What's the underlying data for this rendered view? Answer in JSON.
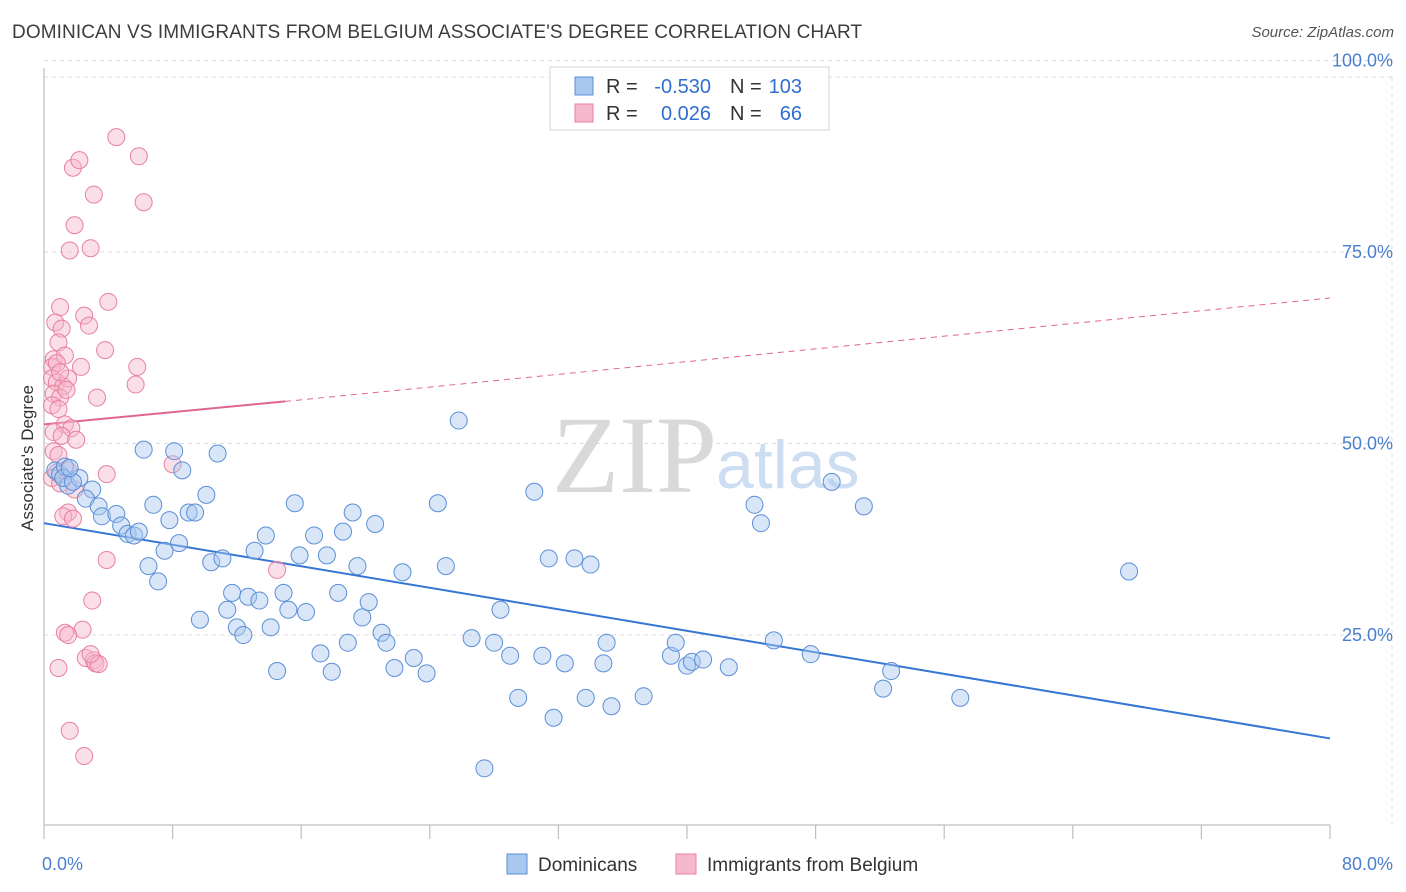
{
  "title": "DOMINICAN VS IMMIGRANTS FROM BELGIUM ASSOCIATE'S DEGREE CORRELATION CHART",
  "source": "Source: ZipAtlas.com",
  "watermark": {
    "zip": "ZIP",
    "atlas": "atlas"
  },
  "legend": {
    "rows": [
      {
        "r_label": "R =",
        "r_value": "-0.530",
        "n_label": "N =",
        "n_value": "103"
      },
      {
        "r_label": "R =",
        "r_value": "0.026",
        "n_label": "N =",
        "n_value": "66"
      }
    ]
  },
  "bottom_legend": [
    "Dominicans",
    "Immigrants from Belgium"
  ],
  "colors": {
    "blue_fill": "#a9c8f0",
    "blue_stroke": "#5b8fd6",
    "blue_line": "#3575d3",
    "pink_fill": "#f6b8cc",
    "pink_stroke": "#e8809f",
    "pink_line": "#e0668f",
    "grid": "#dcdcdc",
    "tick_label": "#4a7fd0"
  },
  "chart_data": {
    "type": "scatter",
    "title": "DOMINICAN VS IMMIGRANTS FROM BELGIUM ASSOCIATE'S DEGREE CORRELATION CHART",
    "xlabel": "",
    "ylabel": "Associate's Degree",
    "xlim": [
      0,
      80
    ],
    "ylim": [
      0,
      105
    ],
    "x_tick_labels": [
      {
        "value": 0,
        "label": "0.0%"
      },
      {
        "value": 80,
        "label": "80.0%"
      }
    ],
    "y_tick_labels": [
      {
        "value": 25,
        "label": "25.0%"
      },
      {
        "value": 50,
        "label": "50.0%"
      },
      {
        "value": 75,
        "label": "75.0%"
      },
      {
        "value": 100,
        "label": "100.0%"
      }
    ],
    "grid": true,
    "legend_position": "top-center",
    "series": [
      {
        "name": "Dominicans",
        "r": -0.53,
        "n": 103,
        "trend": {
          "x1": 0,
          "y1": 39.6,
          "x2": 80,
          "y2": 11.5,
          "style": "solid"
        },
        "points": [
          [
            0.7,
            46.5
          ],
          [
            1.0,
            46.0
          ],
          [
            1.3,
            47.0
          ],
          [
            1.5,
            44.5
          ],
          [
            1.2,
            45.5
          ],
          [
            2.2,
            45.5
          ],
          [
            1.8,
            45.0
          ],
          [
            3.0,
            44.0
          ],
          [
            2.6,
            42.8
          ],
          [
            3.4,
            41.8
          ],
          [
            3.6,
            40.5
          ],
          [
            4.5,
            40.8
          ],
          [
            4.8,
            39.3
          ],
          [
            5.2,
            38.2
          ],
          [
            5.6,
            38.0
          ],
          [
            5.9,
            38.5
          ],
          [
            6.2,
            49.2
          ],
          [
            6.5,
            34.0
          ],
          [
            6.8,
            42.0
          ],
          [
            7.1,
            32.0
          ],
          [
            7.5,
            36.0
          ],
          [
            7.8,
            40.0
          ],
          [
            8.1,
            49.0
          ],
          [
            8.4,
            37.0
          ],
          [
            8.6,
            46.5
          ],
          [
            9.0,
            41.0
          ],
          [
            9.4,
            41.0
          ],
          [
            9.7,
            27.0
          ],
          [
            10.1,
            43.3
          ],
          [
            10.4,
            34.5
          ],
          [
            10.8,
            48.7
          ],
          [
            11.1,
            35.0
          ],
          [
            11.4,
            28.3
          ],
          [
            11.7,
            30.5
          ],
          [
            12.0,
            26.0
          ],
          [
            12.4,
            25.0
          ],
          [
            12.7,
            30.0
          ],
          [
            13.1,
            36.0
          ],
          [
            13.4,
            29.5
          ],
          [
            13.8,
            38.0
          ],
          [
            14.1,
            26.0
          ],
          [
            14.5,
            20.3
          ],
          [
            14.9,
            30.5
          ],
          [
            15.2,
            28.3
          ],
          [
            15.6,
            42.2
          ],
          [
            15.9,
            35.4
          ],
          [
            16.3,
            28.0
          ],
          [
            16.8,
            38.0
          ],
          [
            17.2,
            22.6
          ],
          [
            17.6,
            35.4
          ],
          [
            17.9,
            20.2
          ],
          [
            18.3,
            30.5
          ],
          [
            18.6,
            38.5
          ],
          [
            18.9,
            24.0
          ],
          [
            19.2,
            41.0
          ],
          [
            19.5,
            34.0
          ],
          [
            19.8,
            27.3
          ],
          [
            20.2,
            29.3
          ],
          [
            20.6,
            39.5
          ],
          [
            21.0,
            25.3
          ],
          [
            21.3,
            24.0
          ],
          [
            21.8,
            20.7
          ],
          [
            22.3,
            33.2
          ],
          [
            23.0,
            22.0
          ],
          [
            23.8,
            20.0
          ],
          [
            24.5,
            42.2
          ],
          [
            25.0,
            34.0
          ],
          [
            25.8,
            53.0
          ],
          [
            26.6,
            24.6
          ],
          [
            27.4,
            7.6
          ],
          [
            28.0,
            24.0
          ],
          [
            28.4,
            28.3
          ],
          [
            29.0,
            22.3
          ],
          [
            29.5,
            16.8
          ],
          [
            30.5,
            43.7
          ],
          [
            31.0,
            22.3
          ],
          [
            31.4,
            35.0
          ],
          [
            31.7,
            14.2
          ],
          [
            32.4,
            21.3
          ],
          [
            33.0,
            35.0
          ],
          [
            33.7,
            16.8
          ],
          [
            34.0,
            34.2
          ],
          [
            34.8,
            21.3
          ],
          [
            35.0,
            24.0
          ],
          [
            35.3,
            15.7
          ],
          [
            37.3,
            17.0
          ],
          [
            39.0,
            22.3
          ],
          [
            39.3,
            24.0
          ],
          [
            40.0,
            21.0
          ],
          [
            40.3,
            21.5
          ],
          [
            41.0,
            21.8
          ],
          [
            42.6,
            20.8
          ],
          [
            44.2,
            42.0
          ],
          [
            44.6,
            39.6
          ],
          [
            45.4,
            24.3
          ],
          [
            47.7,
            22.5
          ],
          [
            49.0,
            45.0
          ],
          [
            51.0,
            41.8
          ],
          [
            52.2,
            18.0
          ],
          [
            52.7,
            20.3
          ],
          [
            57.0,
            16.8
          ],
          [
            67.5,
            33.3
          ],
          [
            1.6,
            46.8
          ]
        ]
      },
      {
        "name": "Immigrants from Belgium",
        "r": 0.026,
        "n": 66,
        "trend_solid": {
          "x1": 0,
          "y1": 52.5,
          "x2": 15,
          "y2": 55.5,
          "style": "solid"
        },
        "trend_dashed": {
          "x1": 15,
          "y1": 55.5,
          "x2": 80,
          "y2": 69.0,
          "style": "dashed"
        },
        "points": [
          [
            4.5,
            90.0
          ],
          [
            5.9,
            87.5
          ],
          [
            1.8,
            86.0
          ],
          [
            2.2,
            87.0
          ],
          [
            3.1,
            82.5
          ],
          [
            6.2,
            81.5
          ],
          [
            1.9,
            78.5
          ],
          [
            1.6,
            75.2
          ],
          [
            2.9,
            75.5
          ],
          [
            4.0,
            68.5
          ],
          [
            1.0,
            67.8
          ],
          [
            2.5,
            66.7
          ],
          [
            2.8,
            65.4
          ],
          [
            0.7,
            65.8
          ],
          [
            1.1,
            65.0
          ],
          [
            0.9,
            63.2
          ],
          [
            3.8,
            62.2
          ],
          [
            0.6,
            61.0
          ],
          [
            1.3,
            61.5
          ],
          [
            0.5,
            60.0
          ],
          [
            0.8,
            60.5
          ],
          [
            2.3,
            60.0
          ],
          [
            5.8,
            60.0
          ],
          [
            0.5,
            58.5
          ],
          [
            0.8,
            58.0
          ],
          [
            1.2,
            57.5
          ],
          [
            1.5,
            58.5
          ],
          [
            5.7,
            57.7
          ],
          [
            0.6,
            56.5
          ],
          [
            1.0,
            56.0
          ],
          [
            3.3,
            56.0
          ],
          [
            0.5,
            55.0
          ],
          [
            0.9,
            54.5
          ],
          [
            1.3,
            52.5
          ],
          [
            1.7,
            52.0
          ],
          [
            0.6,
            51.5
          ],
          [
            1.1,
            51.0
          ],
          [
            2.0,
            50.5
          ],
          [
            0.6,
            49.0
          ],
          [
            0.9,
            48.5
          ],
          [
            8.0,
            47.3
          ],
          [
            1.5,
            46.5
          ],
          [
            0.8,
            46.2
          ],
          [
            3.9,
            46.0
          ],
          [
            0.5,
            45.5
          ],
          [
            1.0,
            44.8
          ],
          [
            1.9,
            44.0
          ],
          [
            1.5,
            41.0
          ],
          [
            1.2,
            40.5
          ],
          [
            1.8,
            40.2
          ],
          [
            14.5,
            33.5
          ],
          [
            3.9,
            34.8
          ],
          [
            3.0,
            29.5
          ],
          [
            2.4,
            25.7
          ],
          [
            1.3,
            25.3
          ],
          [
            1.5,
            25.0
          ],
          [
            2.6,
            22.0
          ],
          [
            3.1,
            21.7
          ],
          [
            3.2,
            21.3
          ],
          [
            0.9,
            20.7
          ],
          [
            1.6,
            12.5
          ],
          [
            2.5,
            9.2
          ],
          [
            3.4,
            21.2
          ],
          [
            2.9,
            22.5
          ],
          [
            1.4,
            57.0
          ],
          [
            1.0,
            59.3
          ]
        ]
      }
    ]
  }
}
